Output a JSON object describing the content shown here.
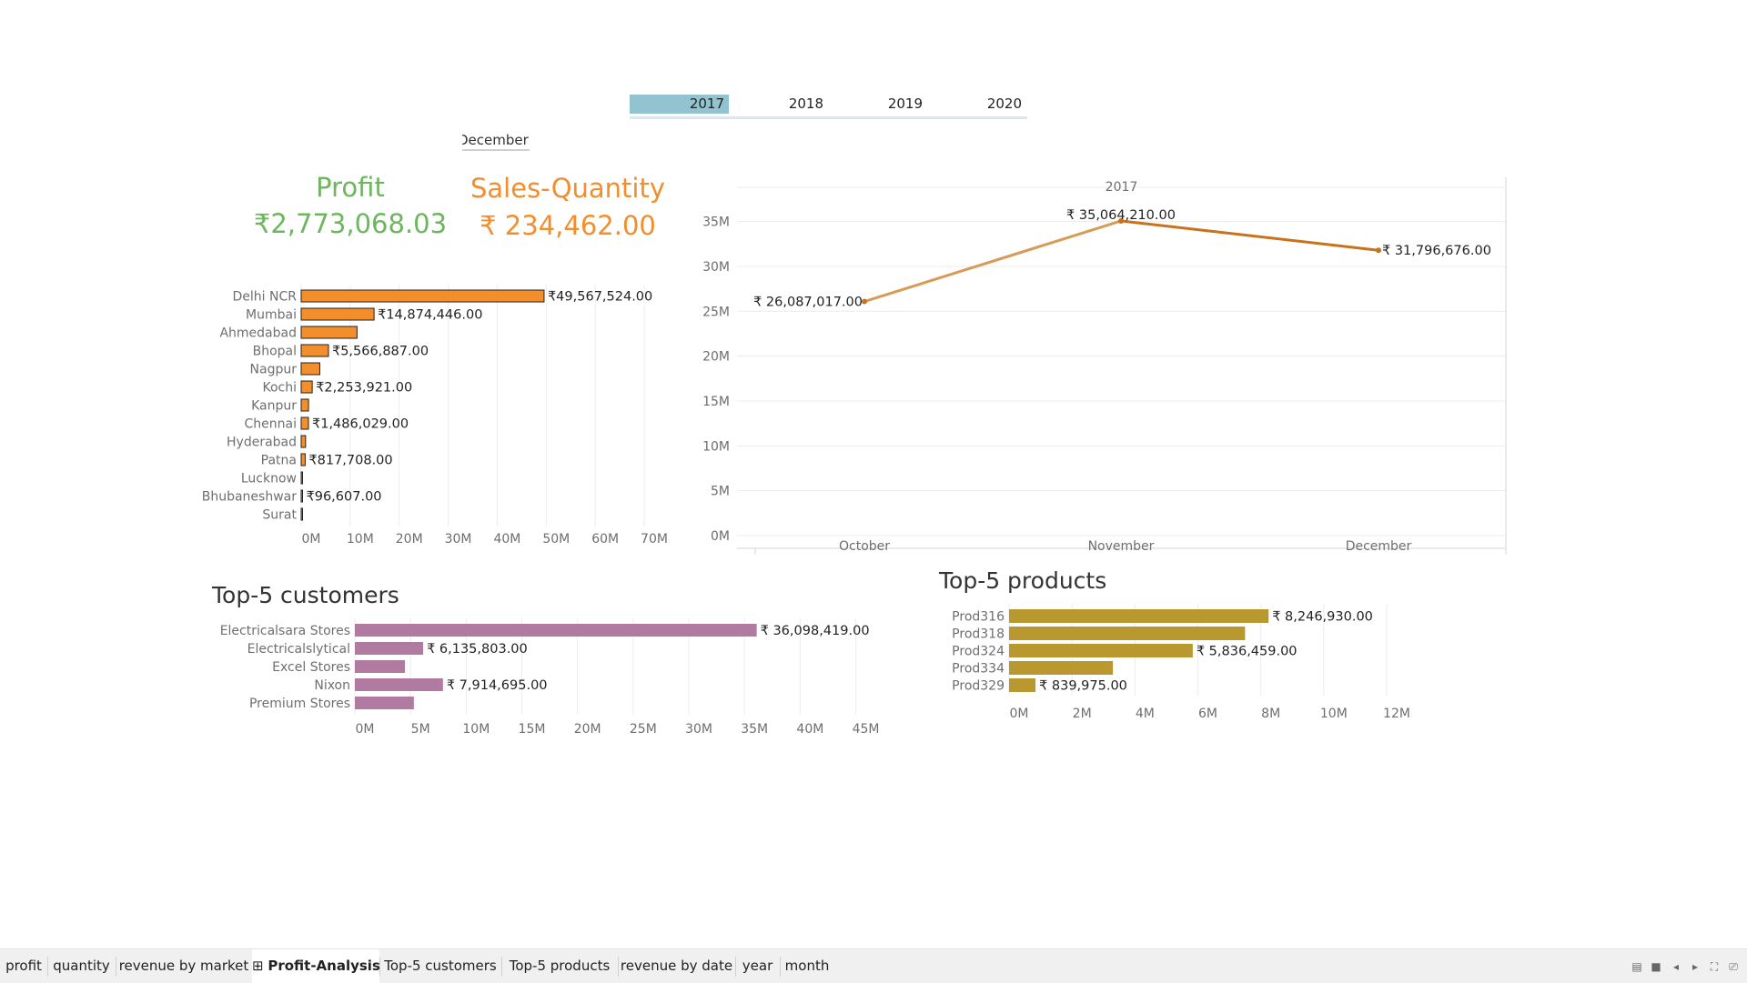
{
  "filters": {
    "years": [
      "2017",
      "2018",
      "2019",
      "2020"
    ],
    "selected_year": "2017",
    "month": "December"
  },
  "kpis": {
    "profit_title": "Profit",
    "profit_value": "₹2,773,068.03",
    "sales_title": "Sales-Quantity",
    "sales_value": "₹ 234,462.00",
    "colors": {
      "profit": "#6db65e",
      "sales": "#f28e2b"
    }
  },
  "chart_data": [
    {
      "type": "bar",
      "orientation": "horizontal",
      "categories": [
        "Delhi NCR",
        "Mumbai",
        "Ahmedabad",
        "Bhopal",
        "Nagpur",
        "Kochi",
        "Kanpur",
        "Chennai",
        "Hyderabad",
        "Patna",
        "Lucknow",
        "Bhubaneshwar",
        "Surat"
      ],
      "values": [
        49567524,
        14874446,
        11400000,
        5566887,
        3800000,
        2253921,
        1500000,
        1486029,
        900000,
        817708,
        150000,
        96607,
        60000
      ],
      "labels": [
        "₹49,567,524.00",
        "₹14,874,446.00",
        "",
        "₹5,566,887.00",
        "",
        "₹2,253,921.00",
        "",
        "₹1,486,029.00",
        "",
        "₹817,708.00",
        "",
        "₹96,607.00",
        ""
      ],
      "ticks": [
        "0M",
        "10M",
        "20M",
        "30M",
        "40M",
        "50M",
        "60M",
        "70M"
      ],
      "xlim": [
        0,
        70000000
      ],
      "color": "#f28e2b"
    },
    {
      "type": "line",
      "header": "2017",
      "categories": [
        "October",
        "November",
        "December"
      ],
      "values": [
        26087017,
        35064210,
        31796676
      ],
      "labels": [
        "₹ 26,087,017.00",
        "₹ 35,064,210.00",
        "₹ 31,796,676.00"
      ],
      "ticks": [
        "0M",
        "5M",
        "10M",
        "15M",
        "20M",
        "25M",
        "30M",
        "35M"
      ],
      "ylim": [
        0,
        38000000
      ],
      "color": "#c8731c"
    },
    {
      "type": "bar",
      "orientation": "horizontal",
      "title": "Top-5 customers",
      "categories": [
        "Electricalsara Stores",
        "Electricalslytical",
        "Excel Stores",
        "Nixon",
        "Premium Stores"
      ],
      "values": [
        36098419,
        6135803,
        4500000,
        7914695,
        5300000
      ],
      "labels": [
        "₹ 36,098,419.00",
        "₹ 6,135,803.00",
        "",
        "₹ 7,914,695.00",
        ""
      ],
      "ticks": [
        "0M",
        "5M",
        "10M",
        "15M",
        "20M",
        "25M",
        "30M",
        "35M",
        "40M",
        "45M"
      ],
      "xlim": [
        0,
        47000000
      ],
      "color": "#b07aa1"
    },
    {
      "type": "bar",
      "orientation": "horizontal",
      "title": "Top-5 products",
      "categories": [
        "Prod316",
        "Prod318",
        "Prod324",
        "Prod334",
        "Prod329"
      ],
      "values": [
        8246930,
        7500000,
        5836459,
        3300000,
        839975
      ],
      "labels": [
        "₹ 8,246,930.00",
        "",
        "₹ 5,836,459.00",
        "",
        "₹ 839,975.00"
      ],
      "ticks": [
        "0M",
        "2M",
        "4M",
        "6M",
        "8M",
        "10M",
        "12M"
      ],
      "xlim": [
        0,
        12000000
      ],
      "color": "#b9992f"
    }
  ],
  "tabs": [
    "profit",
    "quantity",
    "revenue by market",
    "Profit-Analysis",
    "Top-5 customers",
    "Top-5 products",
    "revenue by date",
    "year",
    "month"
  ],
  "active_tab": "Profit-Analysis",
  "tab_icon": "⊞"
}
